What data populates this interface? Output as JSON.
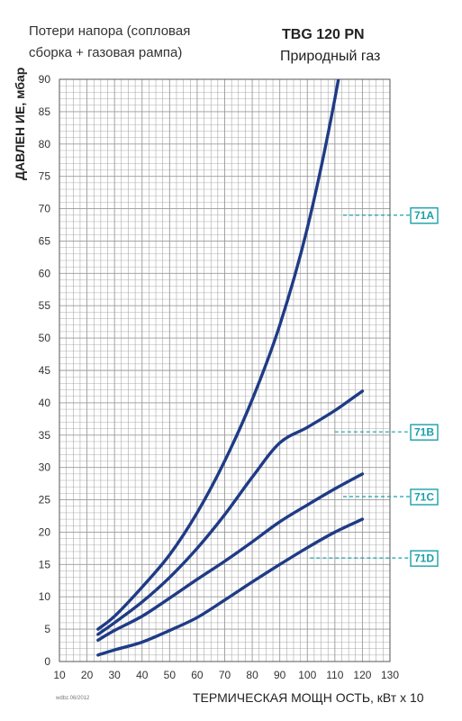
{
  "chart_data": {
    "type": "line",
    "title": "TBG 120 PN",
    "subtitle": "Природный газ",
    "caption_lines": [
      "Потери напора (сопловая",
      "сборка + газовая рампа)"
    ],
    "ylabel": "ДАВЛЕН ИЕ, мбар",
    "xlabel": "ТЕРМИЧЕСКАЯ МОЩН ОСТЬ, кВт х 10",
    "xlim": [
      10,
      130
    ],
    "ylim": [
      0,
      90
    ],
    "x_ticks": [
      "10",
      "20",
      "30",
      "40",
      "50",
      "60",
      "70",
      "80",
      "90",
      "100",
      "110",
      "120",
      "130"
    ],
    "y_ticks": [
      "0",
      "5",
      "10",
      "15",
      "20",
      "25",
      "30",
      "35",
      "40",
      "45",
      "50",
      "55",
      "60",
      "65",
      "70",
      "75",
      "80",
      "85",
      "90"
    ],
    "grid": true,
    "series": [
      {
        "name": "71A",
        "label_y": 69,
        "x": [
          24,
          30,
          40,
          50,
          60,
          70,
          80,
          90,
          100,
          110,
          120
        ],
        "values": [
          5,
          7,
          11.5,
          16.5,
          23,
          31,
          40.5,
          52,
          67,
          87,
          112
        ]
      },
      {
        "name": "71B",
        "label_y": 35.5,
        "x": [
          24,
          30,
          40,
          50,
          60,
          70,
          80,
          90,
          100,
          110,
          120
        ],
        "values": [
          4.2,
          6,
          9.2,
          13,
          17.5,
          22.7,
          28.5,
          33.8,
          36.2,
          38.8,
          41.8
        ]
      },
      {
        "name": "71C",
        "label_y": 25.5,
        "x": [
          24,
          30,
          40,
          50,
          60,
          70,
          80,
          90,
          100,
          110,
          120
        ],
        "values": [
          3.3,
          4.8,
          7,
          9.8,
          12.7,
          15.5,
          18.5,
          21.6,
          24.2,
          26.7,
          29
        ]
      },
      {
        "name": "71D",
        "label_y": 16,
        "x": [
          24,
          30,
          40,
          50,
          60,
          70,
          80,
          90,
          100,
          110,
          120
        ],
        "values": [
          1,
          1.8,
          3,
          4.8,
          6.8,
          9.5,
          12.3,
          15,
          17.6,
          20,
          22
        ]
      }
    ],
    "doc_code": "wdbz.06/2012",
    "colors": {
      "curve": "#1f3b86",
      "callout": "#1aa0a8",
      "grid": "#9a9a9a"
    }
  }
}
